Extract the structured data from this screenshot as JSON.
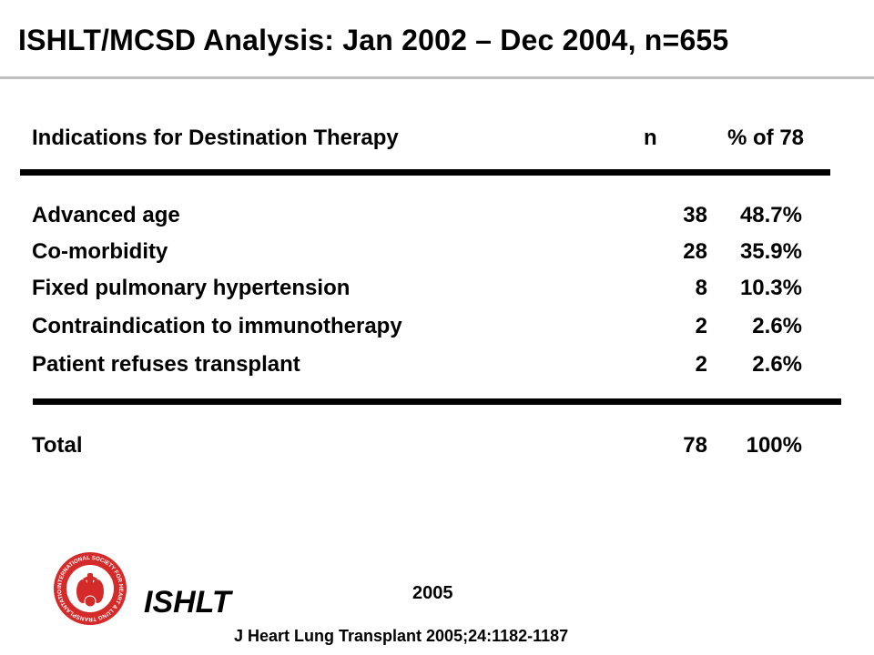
{
  "title": "ISHLT/MCSD Analysis:  Jan 2002 – Dec 2004, n=655",
  "table": {
    "header": {
      "label": "Indications for Destination Therapy",
      "n": "n",
      "pct": "% of 78"
    },
    "rows": [
      {
        "label": "Advanced age",
        "n": "38",
        "pct": "48.7%"
      },
      {
        "label": "Co-morbidity",
        "n": "28",
        "pct": "35.9%"
      },
      {
        "label": "Fixed pulmonary hypertension",
        "n": "8",
        "pct": "10.3%"
      },
      {
        "label": "Contraindication to immunotherapy",
        "n": "2",
        "pct": "2.6%"
      },
      {
        "label": "Patient refuses transplant",
        "n": "2",
        "pct": "2.6%"
      }
    ],
    "total": {
      "label": "Total",
      "n": "78",
      "pct": "100%"
    }
  },
  "footer": {
    "logo_icon": "ishlt-seal-icon",
    "logo_text": "INTERNATIONAL SOCIETY FOR HEART & LUNG TRANSPLANTATION",
    "org": "ISHLT",
    "year": "2005",
    "citation": "J Heart Lung Transplant 2005;24:1182-1187"
  },
  "colors": {
    "seal_red": "#d42a2a",
    "text": "#000000"
  }
}
